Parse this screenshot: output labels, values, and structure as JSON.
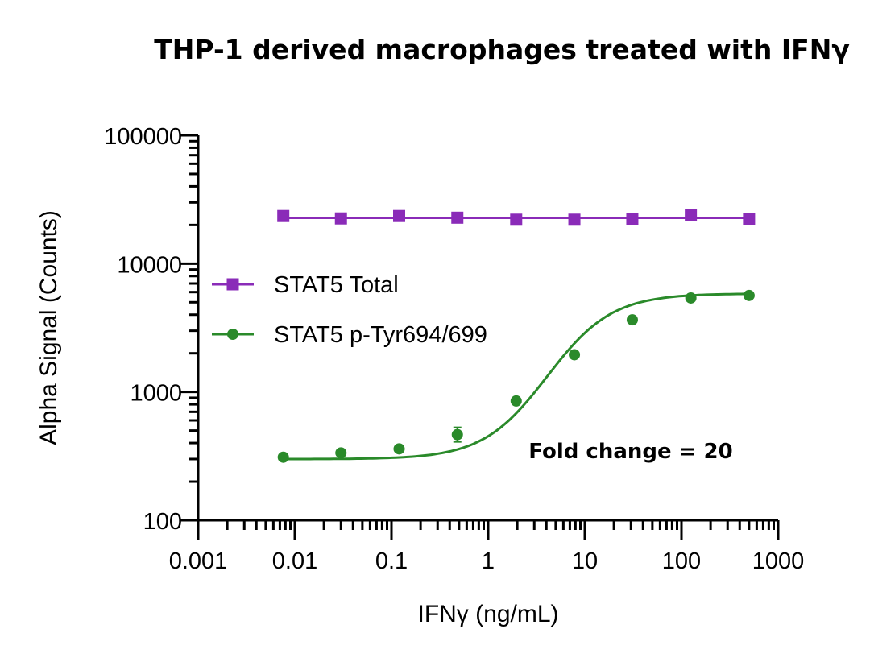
{
  "chart_data": {
    "type": "line",
    "title": "THP-1 derived macrophages treated with IFNγ",
    "xlabel": "IFNγ (ng/mL)",
    "ylabel": "Alpha Signal (Counts)",
    "x_scale": "log",
    "y_scale": "log",
    "xlim": [
      0.001,
      1000
    ],
    "ylim": [
      100,
      100000
    ],
    "x_ticks": [
      0.001,
      0.01,
      0.1,
      1,
      10,
      100,
      1000
    ],
    "x_tick_labels": [
      "0.001",
      "0.01",
      "0.1",
      "1",
      "10",
      "100",
      "1000"
    ],
    "y_ticks": [
      100,
      1000,
      10000,
      100000
    ],
    "y_tick_labels": [
      "100",
      "1000",
      "10000",
      "100000"
    ],
    "grid": false,
    "legend_position": "left-middle",
    "series": [
      {
        "name": "STAT5 Total",
        "color": "#8a2bb8",
        "marker": "square",
        "fit": "straight",
        "x": [
          0.0076,
          0.03,
          0.12,
          0.48,
          1.95,
          7.8,
          31,
          125,
          500
        ],
        "y": [
          23500,
          22500,
          23500,
          22800,
          22000,
          22000,
          22200,
          23800,
          22300
        ]
      },
      {
        "name": "STAT5 p-Tyr694/699",
        "color": "#2a8a2a",
        "marker": "circle",
        "fit": "sigmoid",
        "x": [
          0.0076,
          0.03,
          0.12,
          0.48,
          1.95,
          7.8,
          31,
          125,
          500
        ],
        "y": [
          310,
          335,
          360,
          465,
          850,
          1950,
          3650,
          5400,
          5650
        ]
      }
    ],
    "annotations": [
      {
        "text": "Fold change = 20",
        "color": "#2a8a2a"
      }
    ]
  }
}
